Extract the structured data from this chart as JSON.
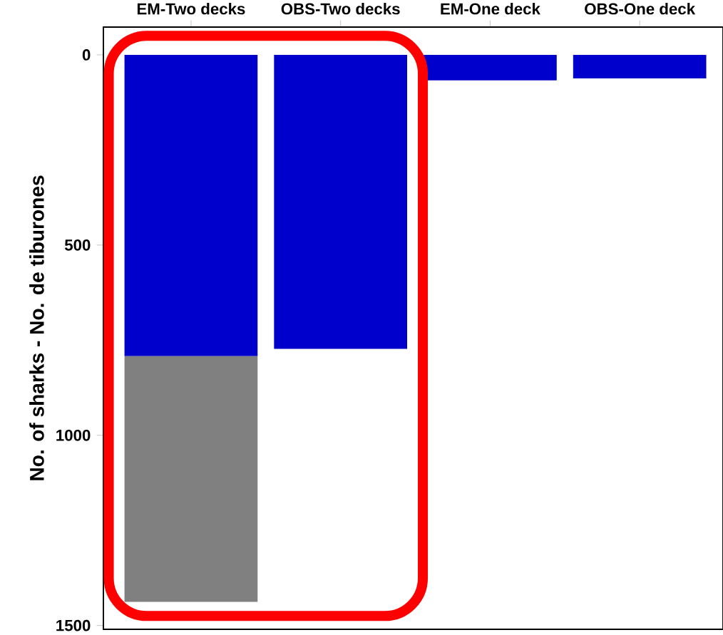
{
  "chart_data": {
    "type": "bar",
    "stacked": true,
    "ylabel": "No. of sharks - No. de tiburones",
    "categories": [
      "EM-Two decks",
      "OBS-Two decks",
      "EM-One deck",
      "OBS-One deck"
    ],
    "series": [
      {
        "color": "#0000cd",
        "values": [
          792,
          773,
          67,
          62
        ]
      },
      {
        "color": "#808080",
        "values": [
          646,
          null,
          null,
          null
        ]
      }
    ],
    "ylim": [
      1510,
      -73
    ],
    "yticks": [
      0,
      500,
      1000,
      1500
    ]
  }
}
